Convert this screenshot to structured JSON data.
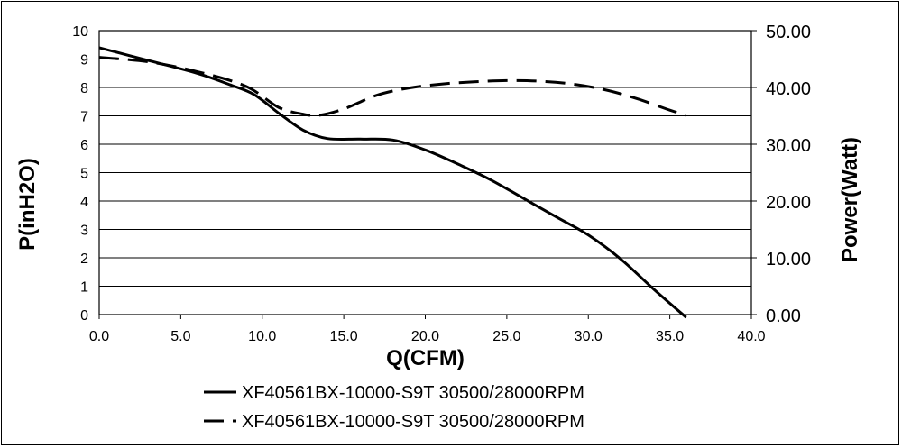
{
  "chart_data": {
    "type": "line",
    "xlabel": "Q(CFM)",
    "ylabel": "P(inH2O)",
    "y2label": "Power(Watt)",
    "xlim": [
      0,
      40
    ],
    "ylim": [
      0,
      10
    ],
    "y2lim": [
      0,
      50
    ],
    "xticks": [
      "0.0",
      "5.0",
      "10.0",
      "15.0",
      "20.0",
      "25.0",
      "30.0",
      "35.0",
      "40.0"
    ],
    "yticks": [
      "0",
      "1",
      "2",
      "3",
      "4",
      "5",
      "6",
      "7",
      "8",
      "9",
      "10"
    ],
    "y2ticks": [
      "0.00",
      "10.00",
      "20.00",
      "30.00",
      "40.00",
      "50.00"
    ],
    "grid": "horizontal",
    "legend_position": "bottom",
    "series": [
      {
        "name": "XF40561BX-10000-S9T 30500/28000RPM",
        "axis": "left",
        "style": "solid",
        "color": "#000000",
        "x": [
          0,
          3,
          6,
          8,
          9.5,
          11,
          12.5,
          14,
          16,
          18,
          20,
          22,
          24,
          26,
          28,
          30,
          32,
          34,
          36
        ],
        "y": [
          9.4,
          8.95,
          8.5,
          8.1,
          7.75,
          7.1,
          6.5,
          6.2,
          6.18,
          6.15,
          5.8,
          5.3,
          4.75,
          4.1,
          3.45,
          2.8,
          1.95,
          0.9,
          -0.1
        ]
      },
      {
        "name": "XF40561BX-10000-S9T 30500/28000RPM",
        "axis": "right",
        "style": "dashed",
        "color": "#000000",
        "x": [
          0,
          3,
          6,
          9,
          11,
          12.5,
          13.5,
          15,
          17,
          19,
          21,
          23,
          25,
          27,
          29,
          31,
          33,
          35,
          36
        ],
        "y": [
          45.3,
          44.5,
          42.8,
          40.2,
          36.5,
          35.3,
          35.1,
          36.2,
          38.6,
          39.9,
          40.6,
          41.0,
          41.2,
          41.1,
          40.6,
          39.6,
          38.0,
          36.0,
          35.1
        ]
      }
    ]
  }
}
